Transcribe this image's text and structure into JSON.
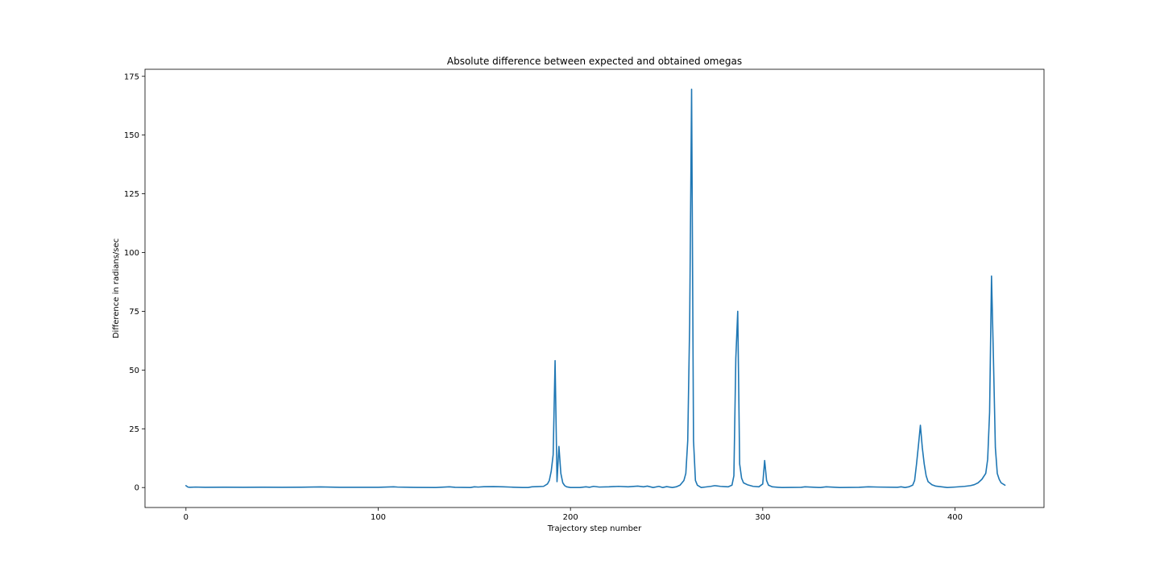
{
  "chart_data": {
    "type": "line",
    "title": "Absolute difference between expected and obtained omegas",
    "xlabel": "Trajectory step number",
    "ylabel": "Difference in radians/sec",
    "xlim": [
      -21.3,
      446.3
    ],
    "ylim": [
      -8.5,
      178
    ],
    "xticks": [
      0,
      100,
      200,
      300,
      400
    ],
    "yticks": [
      0,
      25,
      50,
      75,
      100,
      125,
      150,
      175
    ],
    "xtick_labels": [
      "0",
      "100",
      "200",
      "300",
      "400"
    ],
    "ytick_labels": [
      "0",
      "25",
      "50",
      "75",
      "100",
      "125",
      "150",
      "175"
    ],
    "grid": false,
    "line_color": "#1f77b4",
    "series": [
      {
        "points": [
          [
            0,
            0.8
          ],
          [
            1,
            0.2
          ],
          [
            2,
            0.1
          ],
          [
            5,
            0.2
          ],
          [
            10,
            0.1
          ],
          [
            20,
            0.15
          ],
          [
            30,
            0.1
          ],
          [
            40,
            0.15
          ],
          [
            50,
            0.1
          ],
          [
            60,
            0.15
          ],
          [
            70,
            0.25
          ],
          [
            80,
            0.1
          ],
          [
            90,
            0.1
          ],
          [
            100,
            0.1
          ],
          [
            108,
            0.3
          ],
          [
            110,
            0.2
          ],
          [
            120,
            0.05
          ],
          [
            130,
            0.0
          ],
          [
            137,
            0.3
          ],
          [
            140,
            0.1
          ],
          [
            148,
            0.0
          ],
          [
            150,
            0.3
          ],
          [
            152,
            0.2
          ],
          [
            155,
            0.35
          ],
          [
            160,
            0.4
          ],
          [
            165,
            0.3
          ],
          [
            170,
            0.15
          ],
          [
            175,
            0.0
          ],
          [
            178,
            0.0
          ],
          [
            180,
            0.3
          ],
          [
            183,
            0.4
          ],
          [
            186,
            0.5
          ],
          [
            188,
            1.5
          ],
          [
            189,
            3.0
          ],
          [
            190,
            7.0
          ],
          [
            191,
            14.0
          ],
          [
            192,
            54.0
          ],
          [
            193,
            2.5
          ],
          [
            194,
            17.5
          ],
          [
            195,
            6.0
          ],
          [
            196,
            2.0
          ],
          [
            197,
            0.8
          ],
          [
            198,
            0.3
          ],
          [
            200,
            0.0
          ],
          [
            205,
            0.0
          ],
          [
            208,
            0.3
          ],
          [
            210,
            0.1
          ],
          [
            212,
            0.5
          ],
          [
            215,
            0.2
          ],
          [
            220,
            0.3
          ],
          [
            225,
            0.5
          ],
          [
            230,
            0.3
          ],
          [
            235,
            0.6
          ],
          [
            238,
            0.3
          ],
          [
            240,
            0.6
          ],
          [
            243,
            0.0
          ],
          [
            246,
            0.5
          ],
          [
            248,
            0.0
          ],
          [
            250,
            0.4
          ],
          [
            253,
            0.0
          ],
          [
            255,
            0.3
          ],
          [
            257,
            1.0
          ],
          [
            259,
            3.0
          ],
          [
            260,
            6.0
          ],
          [
            261,
            20.0
          ],
          [
            262,
            70.0
          ],
          [
            263,
            169.5
          ],
          [
            264,
            20.0
          ],
          [
            265,
            3.0
          ],
          [
            266,
            1.0
          ],
          [
            268,
            0.0
          ],
          [
            270,
            0.2
          ],
          [
            273,
            0.5
          ],
          [
            275,
            0.8
          ],
          [
            278,
            0.5
          ],
          [
            280,
            0.4
          ],
          [
            282,
            0.3
          ],
          [
            284,
            1.0
          ],
          [
            285,
            5.0
          ],
          [
            286,
            55.0
          ],
          [
            287,
            75.0
          ],
          [
            288,
            10.0
          ],
          [
            289,
            4.0
          ],
          [
            290,
            2.0
          ],
          [
            292,
            1.2
          ],
          [
            295,
            0.5
          ],
          [
            298,
            0.3
          ],
          [
            300,
            1.5
          ],
          [
            301,
            11.5
          ],
          [
            302,
            3.0
          ],
          [
            303,
            1.0
          ],
          [
            305,
            0.3
          ],
          [
            308,
            0.1
          ],
          [
            310,
            0.0
          ],
          [
            320,
            0.1
          ],
          [
            322,
            0.3
          ],
          [
            330,
            0.0
          ],
          [
            333,
            0.3
          ],
          [
            340,
            0.0
          ],
          [
            350,
            0.1
          ],
          [
            355,
            0.3
          ],
          [
            360,
            0.2
          ],
          [
            370,
            0.1
          ],
          [
            372,
            0.3
          ],
          [
            374,
            0.0
          ],
          [
            376,
            0.3
          ],
          [
            378,
            1.0
          ],
          [
            379,
            3.0
          ],
          [
            380,
            10.0
          ],
          [
            381,
            18.0
          ],
          [
            382,
            26.5
          ],
          [
            383,
            17.0
          ],
          [
            384,
            10.0
          ],
          [
            385,
            5.0
          ],
          [
            386,
            2.5
          ],
          [
            388,
            1.2
          ],
          [
            390,
            0.6
          ],
          [
            393,
            0.3
          ],
          [
            396,
            0.0
          ],
          [
            400,
            0.2
          ],
          [
            405,
            0.5
          ],
          [
            408,
            0.8
          ],
          [
            410,
            1.2
          ],
          [
            412,
            2.0
          ],
          [
            414,
            3.5
          ],
          [
            416,
            6.0
          ],
          [
            417,
            12.0
          ],
          [
            418,
            32.0
          ],
          [
            419,
            90.0
          ],
          [
            420,
            55.0
          ],
          [
            421,
            17.0
          ],
          [
            422,
            6.0
          ],
          [
            423,
            3.5
          ],
          [
            424,
            2.0
          ],
          [
            426,
            1.0
          ]
        ]
      }
    ]
  }
}
